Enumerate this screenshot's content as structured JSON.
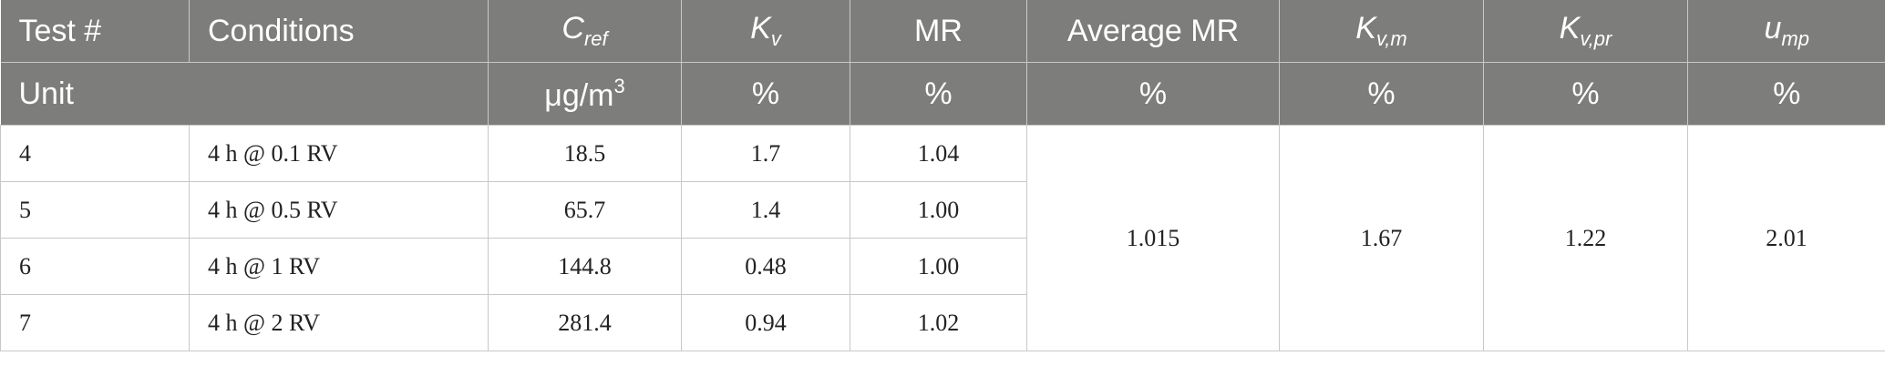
{
  "header": {
    "test_num": "Test #",
    "conditions": "Conditions",
    "c_ref_main": "C",
    "c_ref_sub": "ref",
    "kv_main": "K",
    "kv_sub": "v",
    "mr": "MR",
    "avg_mr": "Average MR",
    "kvm_main": "K",
    "kvm_sub": "v,m",
    "kvpr_main": "K",
    "kvpr_sub": "v,pr",
    "ump_main": "u",
    "ump_sub": "mp"
  },
  "units": {
    "label": "Unit",
    "c_ref_base": "μg/m",
    "c_ref_sup": "3",
    "kv": "%",
    "mr": "%",
    "avg_mr": "%",
    "kvm": "%",
    "kvpr": "%",
    "ump": "%"
  },
  "rows": [
    {
      "test": "4",
      "conditions": "4 h @ 0.1 RV",
      "c_ref": "18.5",
      "kv": "1.7",
      "mr": "1.04"
    },
    {
      "test": "5",
      "conditions": "4 h @ 0.5 RV",
      "c_ref": "65.7",
      "kv": "1.4",
      "mr": "1.00"
    },
    {
      "test": "6",
      "conditions": "4 h @ 1 RV",
      "c_ref": "144.8",
      "kv": "0.48",
      "mr": "1.00"
    },
    {
      "test": "7",
      "conditions": "4 h @ 2 RV",
      "c_ref": "281.4",
      "kv": "0.94",
      "mr": "1.02"
    }
  ],
  "merged": {
    "avg_mr": "1.015",
    "kvm": "1.67",
    "kvpr": "1.22",
    "ump": "2.01"
  }
}
